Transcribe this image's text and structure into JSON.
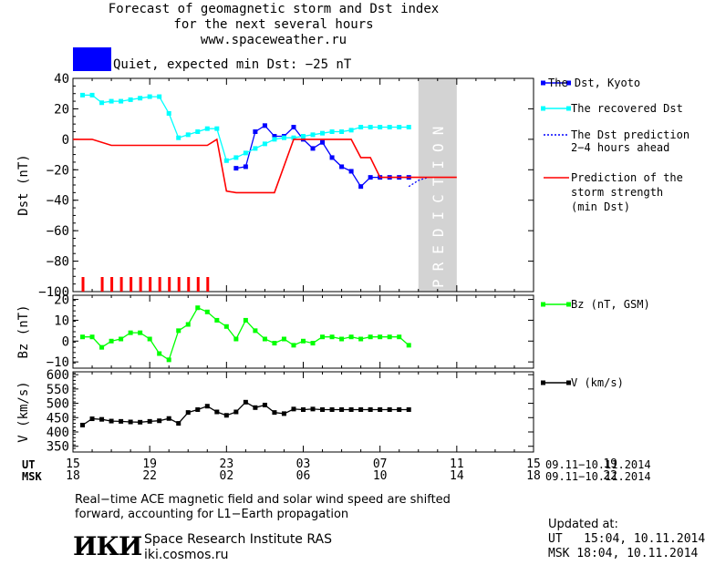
{
  "header": {
    "title_line1": "Forecast of geomagnetic storm and Dst index",
    "title_line2": "for the next several hours",
    "url": "www.spaceweather.ru",
    "status_text": "Quiet, expected min Dst: −25 nT",
    "status_color": "#0000ff"
  },
  "prediction_label": "PREDICTION",
  "x_axis": {
    "ut_label": "UT",
    "msk_label": "MSK",
    "ut_ticks": [
      "15",
      "19",
      "23",
      "03",
      "07",
      "11",
      "15",
      "19"
    ],
    "msk_ticks": [
      "18",
      "22",
      "02",
      "06",
      "10",
      "14",
      "18",
      "22"
    ],
    "date_range_ut": "09.11−10.11.2014",
    "date_range_msk": "09.11−10.11.2014"
  },
  "legend": {
    "dst_kyoto": "The Dst, Kyoto",
    "dst_recovered": "The recovered Dst",
    "dst_prediction_1": "The Dst prediction",
    "dst_prediction_2": "2−4 hours ahead",
    "storm_1": "Prediction of the",
    "storm_2": "storm strength",
    "storm_3": "(min Dst)",
    "bz": "Bz (nT, GSM)",
    "v": "V (km/s)"
  },
  "footer": {
    "note_line1": "Real−time ACE magnetic field and solar wind speed are shifted",
    "note_line2": "forward, accounting for L1−Earth propagation",
    "logo_text": "ИКИ",
    "institute": "Space Research Institute RAS",
    "site": "iki.cosmos.ru",
    "updated_label": "Updated at:",
    "updated_ut": "UT   15:04, 10.11.2014",
    "updated_msk": "MSK 18:04, 10.11.2014"
  },
  "colors": {
    "kyoto": "#0000ff",
    "recovered": "#00ffff",
    "storm": "#ff0000",
    "bz": "#00ff00",
    "v": "#000000",
    "prediction_band": "#d3d3d3",
    "quiet_marker": "#ff0000"
  },
  "chart_data": [
    {
      "type": "line",
      "ylabel": "Dst (nT)",
      "xlim": [
        15,
        39
      ],
      "ylim": [
        -100,
        40
      ],
      "yticks": [
        40,
        20,
        0,
        -20,
        -40,
        -60,
        -80,
        -100
      ],
      "prediction_range": [
        33,
        35
      ],
      "series": [
        {
          "name": "The Dst, Kyoto",
          "color": "#0000ff",
          "x": [
            23.5,
            24.0,
            24.5,
            25.0,
            25.5,
            26.0,
            26.5,
            27.0,
            27.5,
            28.0,
            28.5,
            29.0,
            29.5,
            30.0,
            30.5,
            31.0,
            31.5,
            32.0,
            32.5
          ],
          "y": [
            -19,
            -18,
            5,
            9,
            2,
            2,
            8,
            0,
            -6,
            -2,
            -12,
            -18,
            -21,
            -31,
            -25,
            -25,
            -25,
            -25,
            -25
          ]
        },
        {
          "name": "The recovered Dst",
          "color": "#00ffff",
          "x": [
            15.5,
            16.0,
            16.5,
            17.0,
            17.5,
            18.0,
            18.5,
            19.0,
            19.5,
            20.0,
            20.5,
            21.0,
            21.5,
            22.0,
            22.5,
            23.0,
            23.5,
            24.0,
            24.5,
            25.0,
            25.5,
            26.0,
            26.5,
            27.0,
            27.5,
            28.0,
            28.5,
            29.0,
            29.5,
            30.0,
            30.5,
            31.0,
            31.5,
            32.0,
            32.5
          ],
          "y": [
            29,
            29,
            24,
            25,
            25,
            26,
            27,
            28,
            28,
            17,
            1,
            3,
            5,
            7,
            7,
            -14,
            -12,
            -9,
            -6,
            -3,
            0,
            1,
            1,
            2,
            3,
            4,
            5,
            5,
            6,
            8,
            8,
            8,
            8,
            8,
            8
          ]
        },
        {
          "name": "The Dst prediction 2−4 hours ahead",
          "color": "#0000ff",
          "x": [
            32.5,
            33.0,
            33.5
          ],
          "y": [
            -31,
            -27,
            -25
          ]
        },
        {
          "name": "Prediction of the storm strength (min Dst)",
          "color": "#ff0000",
          "x": [
            15.0,
            16.0,
            17.0,
            18.0,
            19.0,
            20.0,
            21.0,
            22.0,
            22.5,
            23.0,
            23.5,
            24.5,
            25.5,
            26.5,
            27.5,
            28.0,
            28.5,
            29.0,
            29.5,
            30.0,
            30.5,
            31.0,
            31.5,
            32.0,
            33.0,
            35.0
          ],
          "y": [
            0,
            0,
            -4,
            -4,
            -4,
            -4,
            -4,
            -4,
            0,
            -34,
            -35,
            -35,
            -35,
            0,
            0,
            0,
            0,
            0,
            0,
            -12,
            -12,
            -25,
            -25,
            -25,
            -25,
            -25
          ]
        }
      ],
      "quiet_markers_x": [
        15.5,
        16.5,
        17.0,
        17.5,
        18.0,
        18.5,
        19.0,
        19.5,
        20.0,
        20.5,
        21.0,
        21.5,
        22.0
      ]
    },
    {
      "type": "line",
      "ylabel": "Bz (nT)",
      "ylim": [
        -13,
        22
      ],
      "yticks": [
        20,
        10,
        0,
        -10
      ],
      "series": [
        {
          "name": "Bz (nT, GSM)",
          "color": "#00ff00",
          "x": [
            15.5,
            16.0,
            16.5,
            17.0,
            17.5,
            18.0,
            18.5,
            19.0,
            19.5,
            20.0,
            20.5,
            21.0,
            21.5,
            22.0,
            22.5,
            23.0,
            23.5,
            24.0,
            24.5,
            25.0,
            25.5,
            26.0,
            26.5,
            27.0,
            27.5,
            28.0,
            28.5,
            29.0,
            29.5,
            30.0,
            30.5,
            31.0,
            31.5,
            32.0,
            32.5
          ],
          "y": [
            2,
            2,
            -3,
            0,
            1,
            4,
            4,
            1,
            -6,
            -9,
            5,
            8,
            16,
            14,
            10,
            7,
            1,
            10,
            5,
            1,
            -1,
            1,
            -2,
            0,
            -1,
            2,
            2,
            1,
            2,
            1,
            2,
            2,
            2,
            2,
            -2
          ]
        }
      ]
    },
    {
      "type": "line",
      "ylabel": "V (km/s)",
      "ylim": [
        330,
        610
      ],
      "yticks": [
        600,
        550,
        500,
        450,
        400,
        350
      ],
      "series": [
        {
          "name": "V (km/s)",
          "color": "#000000",
          "x": [
            15.5,
            16.0,
            16.5,
            17.0,
            17.5,
            18.0,
            18.5,
            19.0,
            19.5,
            20.0,
            20.5,
            21.0,
            21.5,
            22.0,
            22.5,
            23.0,
            23.5,
            24.0,
            24.5,
            25.0,
            25.5,
            26.0,
            26.5,
            27.0,
            27.5,
            28.0,
            28.5,
            29.0,
            29.5,
            30.0,
            30.5,
            31.0,
            31.5,
            32.0,
            32.5
          ],
          "y": [
            424,
            446,
            444,
            438,
            437,
            435,
            434,
            437,
            439,
            447,
            430,
            468,
            478,
            490,
            470,
            458,
            470,
            504,
            485,
            494,
            468,
            464,
            480,
            478,
            480,
            478,
            478,
            478,
            478,
            478,
            478,
            478,
            478,
            478,
            478
          ]
        }
      ]
    }
  ]
}
